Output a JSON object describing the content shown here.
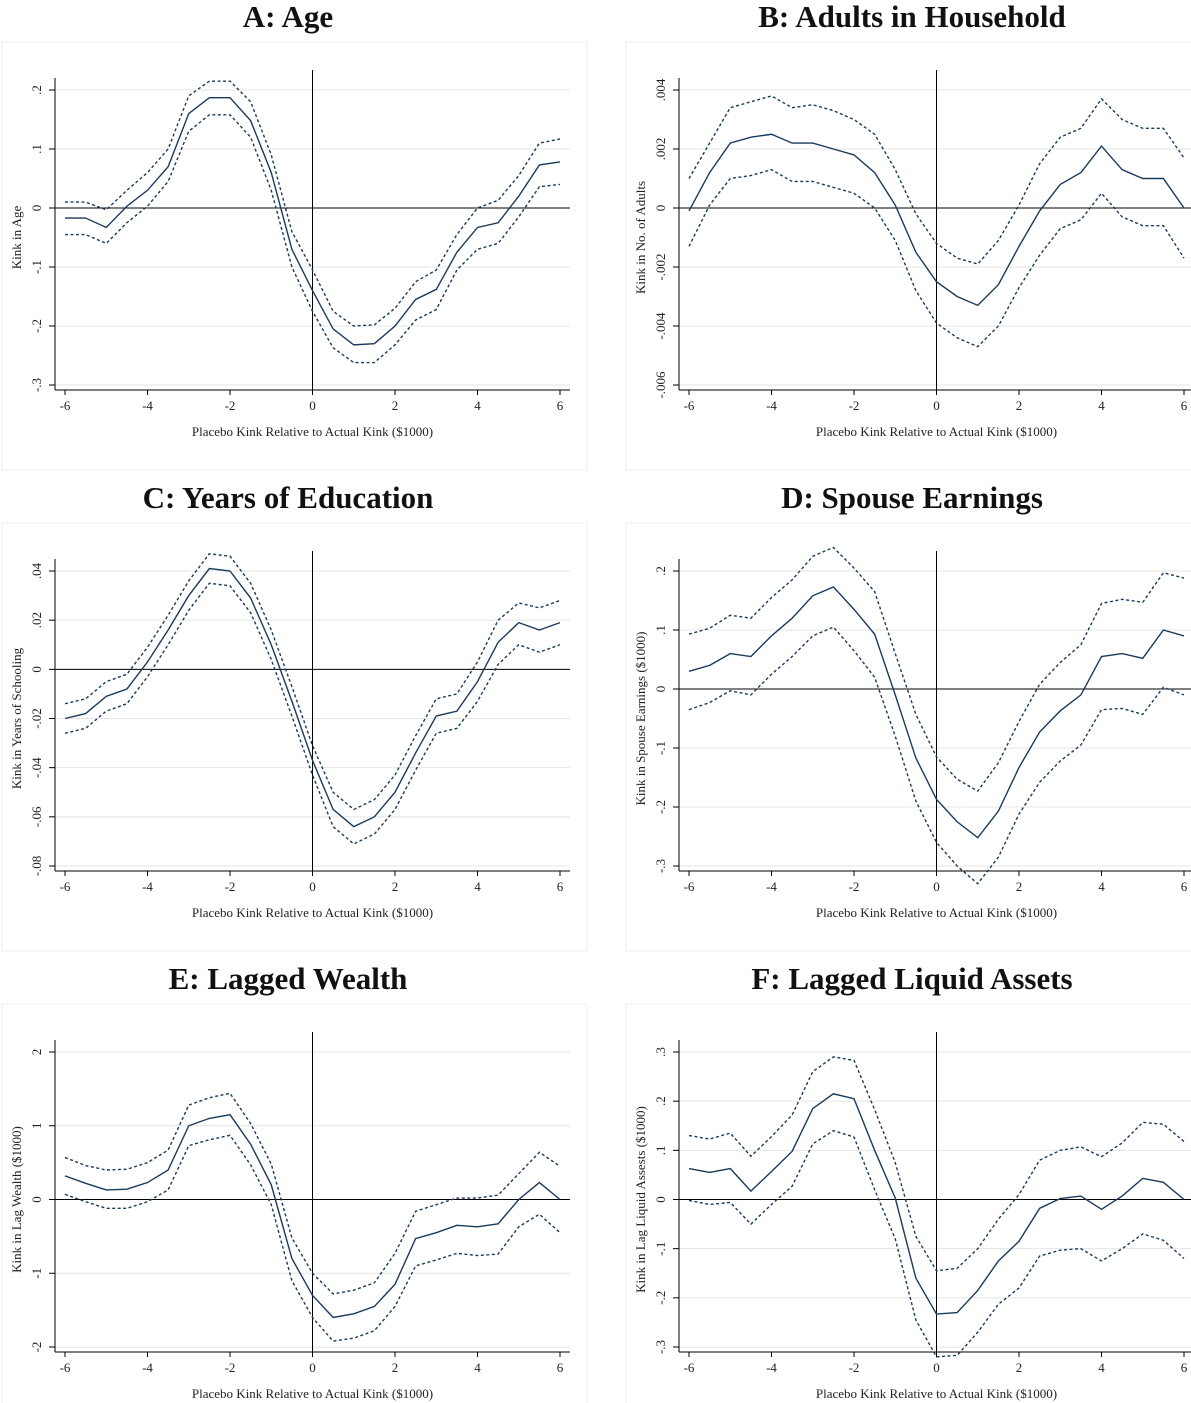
{
  "chart_data": [
    {
      "type": "line",
      "title": "A: Age",
      "xlabel": "Placebo Kink Relative to Actual Kink ($1000)",
      "ylabel": "Kink in Age",
      "x": [
        -6,
        -5.5,
        -5,
        -4.5,
        -4,
        -3.5,
        -3,
        -2.5,
        -2,
        -1.5,
        -1,
        -0.5,
        0,
        0.5,
        1,
        1.5,
        2,
        2.5,
        3,
        3.5,
        4,
        4.5,
        5,
        5.5,
        6
      ],
      "xlim": [
        -6,
        6
      ],
      "xticks": [
        -6,
        -4,
        -2,
        0,
        2,
        4,
        6
      ],
      "ylim": [
        -0.3,
        0.2
      ],
      "yticks": [
        {
          "value": 0.2,
          "label": ".2"
        },
        {
          "value": 0.1,
          "label": ".1"
        },
        0,
        {
          "value": -0.1,
          "label": "-.1"
        },
        {
          "value": -0.2,
          "label": "-.2"
        },
        {
          "value": -0.3,
          "label": "-.3"
        }
      ],
      "grid": true,
      "series": [
        {
          "color": "#1a3a5c",
          "dash": false,
          "values": [
            -0.017,
            -0.017,
            -0.033,
            0.003,
            0.03,
            0.07,
            0.16,
            0.187,
            0.187,
            0.148,
            0.06,
            -0.07,
            -0.14,
            -0.205,
            -0.232,
            -0.23,
            -0.2,
            -0.155,
            -0.138,
            -0.075,
            -0.033,
            -0.025,
            0.02,
            0.073,
            0.078
          ]
        },
        {
          "color": "#1a3a5c",
          "dash": true,
          "values": [
            0.01,
            0.01,
            -0.003,
            0.03,
            0.06,
            0.1,
            0.19,
            0.215,
            0.215,
            0.18,
            0.09,
            -0.04,
            -0.105,
            -0.175,
            -0.2,
            -0.198,
            -0.17,
            -0.125,
            -0.105,
            -0.045,
            0,
            0.013,
            0.055,
            0.11,
            0.117
          ]
        },
        {
          "color": "#1a3a5c",
          "dash": true,
          "values": [
            -0.045,
            -0.045,
            -0.06,
            -0.025,
            0.003,
            0.045,
            0.13,
            0.158,
            0.158,
            0.12,
            0.03,
            -0.1,
            -0.175,
            -0.237,
            -0.262,
            -0.262,
            -0.232,
            -0.19,
            -0.172,
            -0.105,
            -0.07,
            -0.06,
            -0.015,
            0.036,
            0.04
          ]
        }
      ]
    },
    {
      "type": "line",
      "title": "B: Adults in Household",
      "xlabel": "Placebo Kink Relative to Actual Kink ($1000)",
      "ylabel": "Kink in No. of Adults",
      "x": [
        -6,
        -5.5,
        -5,
        -4.5,
        -4,
        -3.5,
        -3,
        -2.5,
        -2,
        -1.5,
        -1,
        -0.5,
        0,
        0.5,
        1,
        1.5,
        2,
        2.5,
        3,
        3.5,
        4,
        4.5,
        5,
        5.5,
        6
      ],
      "xlim": [
        -6,
        6
      ],
      "xticks": [
        -6,
        -4,
        -2,
        0,
        2,
        4,
        6
      ],
      "ylim": [
        -0.006,
        0.004
      ],
      "yticks": [
        {
          "value": 0.004,
          "label": ".004"
        },
        {
          "value": 0.002,
          "label": ".002"
        },
        0,
        {
          "value": -0.002,
          "label": "-.002"
        },
        {
          "value": -0.004,
          "label": "-.004"
        },
        {
          "value": -0.006,
          "label": "-.006"
        }
      ],
      "grid": true,
      "series": [
        {
          "color": "#1a3a5c",
          "dash": false,
          "values": [
            -0.0001,
            0.0012,
            0.0022,
            0.0024,
            0.0025,
            0.0022,
            0.0022,
            0.002,
            0.0018,
            0.0012,
            0.0001,
            -0.0015,
            -0.0025,
            -0.003,
            -0.0033,
            -0.0026,
            -0.0013,
            -0.0001,
            0.0008,
            0.0012,
            0.0021,
            0.0013,
            0.001,
            0.001,
            0
          ]
        },
        {
          "color": "#1a3a5c",
          "dash": true,
          "values": [
            0.001,
            0.0022,
            0.0034,
            0.0036,
            0.0038,
            0.0034,
            0.0035,
            0.0033,
            0.003,
            0.0025,
            0.0013,
            -0.0002,
            -0.0012,
            -0.0017,
            -0.0019,
            -0.0011,
            0.0001,
            0.0015,
            0.0024,
            0.0027,
            0.0037,
            0.003,
            0.0027,
            0.0027,
            0.0017
          ]
        },
        {
          "color": "#1a3a5c",
          "dash": true,
          "values": [
            -0.0013,
            0.0001,
            0.001,
            0.0011,
            0.0013,
            0.0009,
            0.0009,
            0.0007,
            0.0005,
            0,
            -0.0011,
            -0.0028,
            -0.0039,
            -0.0044,
            -0.0047,
            -0.004,
            -0.0027,
            -0.0016,
            -0.0007,
            -0.0004,
            0.0005,
            -0.0003,
            -0.0006,
            -0.0006,
            -0.0017
          ]
        }
      ]
    },
    {
      "type": "line",
      "title": "C: Years of Education",
      "xlabel": "Placebo Kink Relative to Actual Kink ($1000)",
      "ylabel": "Kink in Years of Schooling",
      "x": [
        -6,
        -5.5,
        -5,
        -4.5,
        -4,
        -3.5,
        -3,
        -2.5,
        -2,
        -1.5,
        -1,
        -0.5,
        0,
        0.5,
        1,
        1.5,
        2,
        2.5,
        3,
        3.5,
        4,
        4.5,
        5,
        5.5,
        6
      ],
      "xlim": [
        -6,
        6
      ],
      "xticks": [
        -6,
        -4,
        -2,
        0,
        2,
        4,
        6
      ],
      "ylim": [
        -0.08,
        0.04
      ],
      "yticks": [
        {
          "value": 0.04,
          "label": ".04"
        },
        {
          "value": 0.02,
          "label": ".02"
        },
        0,
        {
          "value": -0.02,
          "label": "-.02"
        },
        {
          "value": -0.04,
          "label": "-.04"
        },
        {
          "value": -0.06,
          "label": "-.06"
        },
        {
          "value": -0.08,
          "label": "-.08"
        }
      ],
      "grid": true,
      "series": [
        {
          "color": "#1a3a5c",
          "dash": false,
          "values": [
            -0.02,
            -0.018,
            -0.011,
            -0.008,
            0.003,
            0.016,
            0.03,
            0.041,
            0.04,
            0.029,
            0.01,
            -0.013,
            -0.037,
            -0.057,
            -0.064,
            -0.06,
            -0.05,
            -0.034,
            -0.019,
            -0.017,
            -0.005,
            0.011,
            0.019,
            0.016,
            0.019
          ]
        },
        {
          "color": "#1a3a5c",
          "dash": true,
          "values": [
            -0.014,
            -0.012,
            -0.005,
            -0.002,
            0.009,
            0.022,
            0.036,
            0.047,
            0.046,
            0.035,
            0.016,
            -0.007,
            -0.031,
            -0.05,
            -0.057,
            -0.053,
            -0.043,
            -0.027,
            -0.012,
            -0.01,
            0.003,
            0.02,
            0.027,
            0.025,
            0.028
          ]
        },
        {
          "color": "#1a3a5c",
          "dash": true,
          "values": [
            -0.026,
            -0.024,
            -0.017,
            -0.014,
            -0.003,
            0.01,
            0.024,
            0.035,
            0.034,
            0.023,
            0.004,
            -0.019,
            -0.043,
            -0.064,
            -0.071,
            -0.067,
            -0.057,
            -0.041,
            -0.026,
            -0.024,
            -0.013,
            0.002,
            0.01,
            0.007,
            0.01
          ]
        }
      ]
    },
    {
      "type": "line",
      "title": "D: Spouse Earnings",
      "xlabel": "Placebo Kink Relative to Actual Kink ($1000)",
      "ylabel": "Kink in Spouse Earnings ($1000)",
      "x": [
        -6,
        -5.5,
        -5,
        -4.5,
        -4,
        -3.5,
        -3,
        -2.5,
        -2,
        -1.5,
        -1,
        -0.5,
        0,
        0.5,
        1,
        1.5,
        2,
        2.5,
        3,
        3.5,
        4,
        4.5,
        5,
        5.5,
        6
      ],
      "xlim": [
        -6,
        6
      ],
      "xticks": [
        -6,
        -4,
        -2,
        0,
        2,
        4,
        6
      ],
      "ylim": [
        -0.3,
        0.2
      ],
      "yticks": [
        {
          "value": 0.2,
          "label": ".2"
        },
        {
          "value": 0.1,
          "label": ".1"
        },
        0,
        {
          "value": -0.1,
          "label": "-.1"
        },
        {
          "value": -0.2,
          "label": "-.2"
        },
        {
          "value": -0.3,
          "label": "-.3"
        }
      ],
      "grid": true,
      "series": [
        {
          "color": "#1a3a5c",
          "dash": false,
          "values": [
            0.03,
            0.04,
            0.06,
            0.055,
            0.09,
            0.12,
            0.158,
            0.173,
            0.135,
            0.093,
            -0.01,
            -0.117,
            -0.187,
            -0.225,
            -0.252,
            -0.207,
            -0.133,
            -0.073,
            -0.037,
            -0.01,
            0.055,
            0.06,
            0.052,
            0.1,
            0.09
          ]
        },
        {
          "color": "#1a3a5c",
          "dash": true,
          "values": [
            0.093,
            0.103,
            0.125,
            0.12,
            0.155,
            0.185,
            0.225,
            0.24,
            0.205,
            0.165,
            0.06,
            -0.043,
            -0.115,
            -0.153,
            -0.173,
            -0.125,
            -0.055,
            0.008,
            0.045,
            0.075,
            0.145,
            0.152,
            0.147,
            0.197,
            0.188
          ]
        },
        {
          "color": "#1a3a5c",
          "dash": true,
          "values": [
            -0.035,
            -0.023,
            -0.003,
            -0.01,
            0.025,
            0.055,
            0.09,
            0.105,
            0.065,
            0.02,
            -0.08,
            -0.19,
            -0.26,
            -0.3,
            -0.33,
            -0.285,
            -0.212,
            -0.158,
            -0.122,
            -0.095,
            -0.035,
            -0.033,
            -0.043,
            0.003,
            -0.01
          ]
        }
      ]
    },
    {
      "type": "line",
      "title": "E: Lagged Wealth",
      "xlabel": "Placebo Kink Relative to Actual Kink ($1000)",
      "ylabel": "Kink in Lag Wealth ($1000)",
      "x": [
        -6,
        -5.5,
        -5,
        -4.5,
        -4,
        -3.5,
        -3,
        -2.5,
        -2,
        -1.5,
        -1,
        -0.5,
        0,
        0.5,
        1,
        1.5,
        2,
        2.5,
        3,
        3.5,
        4,
        4.5,
        5,
        5.5,
        6
      ],
      "xlim": [
        -6,
        6
      ],
      "xticks": [
        -6,
        -4,
        -2,
        0,
        2,
        4,
        6
      ],
      "ylim": [
        -2,
        2
      ],
      "yticks": [
        2,
        1,
        0,
        -1,
        -2
      ],
      "grid": true,
      "series": [
        {
          "color": "#1a3a5c",
          "dash": false,
          "values": [
            0.32,
            0.22,
            0.13,
            0.14,
            0.23,
            0.4,
            1.0,
            1.1,
            1.15,
            0.75,
            0.2,
            -0.8,
            -1.3,
            -1.6,
            -1.55,
            -1.45,
            -1.15,
            -0.53,
            -0.45,
            -0.35,
            -0.37,
            -0.33,
            0,
            0.23,
            0
          ]
        },
        {
          "color": "#1a3a5c",
          "dash": true,
          "values": [
            0.57,
            0.46,
            0.4,
            0.41,
            0.5,
            0.67,
            1.28,
            1.38,
            1.44,
            1.03,
            0.48,
            -0.52,
            -1.0,
            -1.28,
            -1.23,
            -1.13,
            -0.73,
            -0.16,
            -0.07,
            0.02,
            0.02,
            0.06,
            0.35,
            0.64,
            0.45
          ]
        },
        {
          "color": "#1a3a5c",
          "dash": true,
          "values": [
            0.07,
            -0.03,
            -0.12,
            -0.12,
            -0.03,
            0.13,
            0.73,
            0.81,
            0.87,
            0.47,
            -0.07,
            -1.1,
            -1.6,
            -1.92,
            -1.88,
            -1.78,
            -1.45,
            -0.9,
            -0.82,
            -0.73,
            -0.76,
            -0.74,
            -0.37,
            -0.2,
            -0.45
          ]
        }
      ]
    },
    {
      "type": "line",
      "title": "F: Lagged Liquid Assets",
      "xlabel": "Placebo Kink Relative to Actual Kink ($1000)",
      "ylabel": "Kink in Lag Liquid Assests ($1000)",
      "x": [
        -6,
        -5.5,
        -5,
        -4.5,
        -4,
        -3.5,
        -3,
        -2.5,
        -2,
        -1.5,
        -1,
        -0.5,
        0,
        0.5,
        1,
        1.5,
        2,
        2.5,
        3,
        3.5,
        4,
        4.5,
        5,
        5.5,
        6
      ],
      "xlim": [
        -6,
        6
      ],
      "xticks": [
        -6,
        -4,
        -2,
        0,
        2,
        4,
        6
      ],
      "ylim": [
        -0.3,
        0.3
      ],
      "yticks": [
        {
          "value": 0.3,
          "label": ".3"
        },
        {
          "value": 0.2,
          "label": ".2"
        },
        {
          "value": 0.1,
          "label": ".1"
        },
        0,
        {
          "value": -0.1,
          "label": "-.1"
        },
        {
          "value": -0.2,
          "label": "-.2"
        },
        {
          "value": -0.3,
          "label": "-.3"
        }
      ],
      "grid": true,
      "series": [
        {
          "color": "#1a3a5c",
          "dash": false,
          "values": [
            0.063,
            0.055,
            0.063,
            0.017,
            0.057,
            0.098,
            0.185,
            0.215,
            0.205,
            0.1,
            0.003,
            -0.16,
            -0.233,
            -0.23,
            -0.185,
            -0.125,
            -0.085,
            -0.018,
            0.002,
            0.007,
            -0.02,
            0.007,
            0.043,
            0.035,
            0
          ]
        },
        {
          "color": "#1a3a5c",
          "dash": true,
          "values": [
            0.13,
            0.123,
            0.135,
            0.088,
            0.128,
            0.172,
            0.26,
            0.29,
            0.283,
            0.183,
            0.075,
            -0.075,
            -0.145,
            -0.14,
            -0.1,
            -0.04,
            0.01,
            0.08,
            0.1,
            0.107,
            0.087,
            0.115,
            0.157,
            0.153,
            0.118
          ]
        },
        {
          "color": "#1a3a5c",
          "dash": true,
          "values": [
            -0.002,
            -0.01,
            -0.006,
            -0.05,
            -0.01,
            0.027,
            0.113,
            0.14,
            0.127,
            0.02,
            -0.08,
            -0.245,
            -0.32,
            -0.317,
            -0.27,
            -0.213,
            -0.18,
            -0.115,
            -0.103,
            -0.1,
            -0.125,
            -0.1,
            -0.07,
            -0.083,
            -0.12
          ]
        }
      ]
    }
  ]
}
